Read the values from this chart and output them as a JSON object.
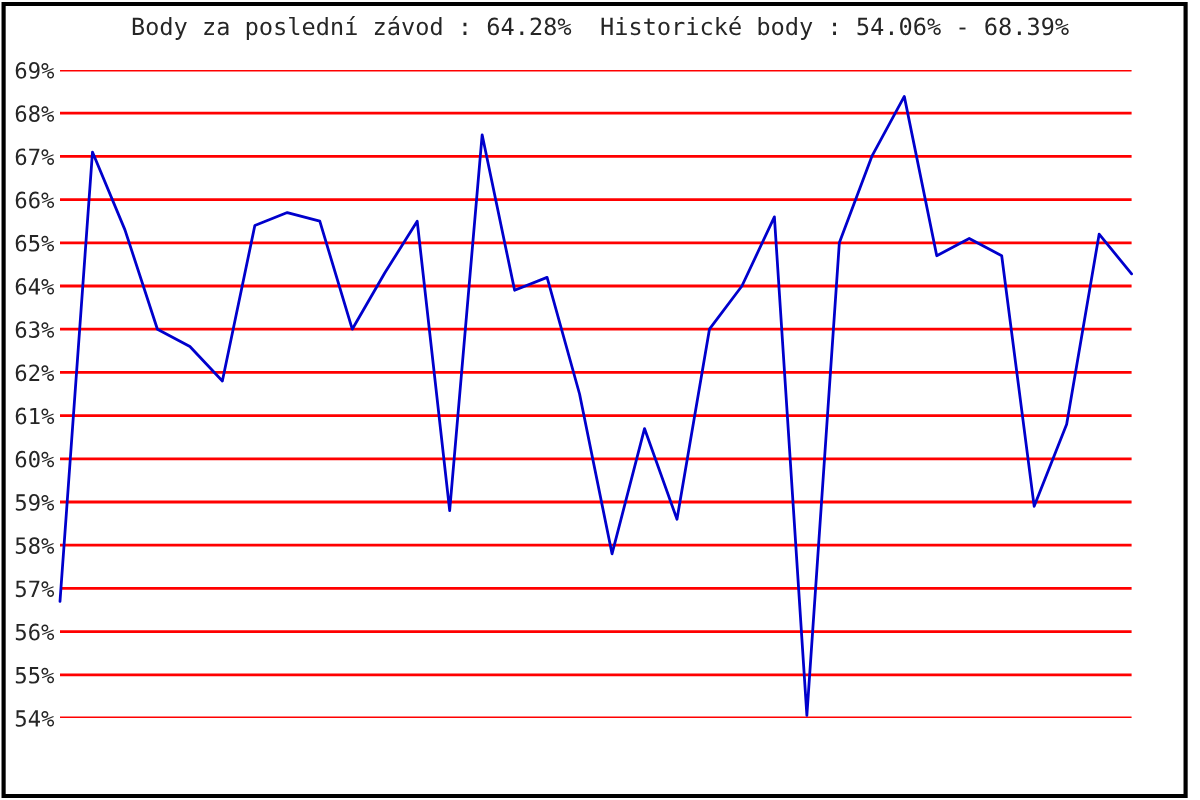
{
  "chart_data": {
    "type": "line",
    "title": "Body za poslední závod : 64.28%  Historické body : 54.06% - 68.39%",
    "categories": [
      null,
      null,
      null,
      null,
      null,
      null,
      null,
      null,
      null,
      null,
      null,
      null,
      null,
      null,
      null,
      null,
      null,
      null,
      null,
      null,
      null,
      null,
      null,
      null,
      null,
      null,
      null,
      null,
      null,
      null,
      null,
      null,
      null,
      null
    ],
    "series": [
      {
        "color": "#0000cc",
        "values": [
          56.7,
          67.1,
          65.3,
          63.0,
          62.6,
          61.8,
          65.4,
          65.7,
          65.5,
          63.0,
          64.3,
          65.5,
          58.8,
          67.5,
          63.9,
          64.2,
          61.5,
          57.8,
          60.7,
          58.6,
          63.0,
          64.0,
          65.6,
          54.06,
          65.0,
          67.0,
          68.39,
          64.7,
          65.1,
          64.7,
          58.9,
          60.8,
          65.2,
          64.28
        ]
      }
    ],
    "ylim": [
      54,
      69
    ],
    "yticks": [
      {
        "value": 54,
        "label": "54%"
      },
      {
        "value": 55,
        "label": "55%"
      },
      {
        "value": 56,
        "label": "56%"
      },
      {
        "value": 57,
        "label": "57%"
      },
      {
        "value": 58,
        "label": "58%"
      },
      {
        "value": 59,
        "label": "59%"
      },
      {
        "value": 60,
        "label": "60%"
      },
      {
        "value": 61,
        "label": "61%"
      },
      {
        "value": 62,
        "label": "62%"
      },
      {
        "value": 63,
        "label": "63%"
      },
      {
        "value": 64,
        "label": "64%"
      },
      {
        "value": 65,
        "label": "65%"
      },
      {
        "value": 66,
        "label": "66%"
      },
      {
        "value": 67,
        "label": "67%"
      },
      {
        "value": 68,
        "label": "68%"
      },
      {
        "value": 69,
        "label": "69%"
      }
    ],
    "grid": "y",
    "tick_labels": "y",
    "marker": "none",
    "line_style": "solid",
    "legend": false
  }
}
